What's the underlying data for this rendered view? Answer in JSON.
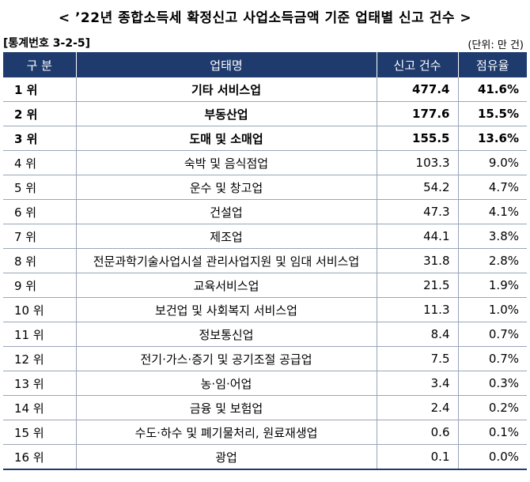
{
  "title": "< ’22년 종합소득세 확정신고 사업소득금액 기준 업태별 신고 건수 >",
  "table_code": "[통계번호 3-2-5]",
  "unit": "(단위: 만 건)",
  "headers": {
    "rank": "구 분",
    "name": "업태명",
    "count": "신고 건수",
    "share": "점유율"
  },
  "rows": [
    {
      "rank": "1 위",
      "name": "기타 서비스업",
      "count": "477.4",
      "share": "41.6%"
    },
    {
      "rank": "2 위",
      "name": "부동산업",
      "count": "177.6",
      "share": "15.5%"
    },
    {
      "rank": "3 위",
      "name": "도매 및 소매업",
      "count": "155.5",
      "share": "13.6%"
    },
    {
      "rank": "4 위",
      "name": "숙박 및 음식점업",
      "count": "103.3",
      "share": "9.0%"
    },
    {
      "rank": "5 위",
      "name": "운수 및 창고업",
      "count": "54.2",
      "share": "4.7%"
    },
    {
      "rank": "6 위",
      "name": "건설업",
      "count": "47.3",
      "share": "4.1%"
    },
    {
      "rank": "7 위",
      "name": "제조업",
      "count": "44.1",
      "share": "3.8%"
    },
    {
      "rank": "8 위",
      "name": "전문과학기술사업시설 관리사업지원 및 임대 서비스업",
      "count": "31.8",
      "share": "2.8%"
    },
    {
      "rank": "9 위",
      "name": "교육서비스업",
      "count": "21.5",
      "share": "1.9%"
    },
    {
      "rank": "10 위",
      "name": "보건업 및 사회복지 서비스업",
      "count": "11.3",
      "share": "1.0%"
    },
    {
      "rank": "11 위",
      "name": "정보통신업",
      "count": "8.4",
      "share": "0.7%"
    },
    {
      "rank": "12 위",
      "name": "전기·가스·증기 및 공기조절 공급업",
      "count": "7.5",
      "share": "0.7%"
    },
    {
      "rank": "13 위",
      "name": "농·임·어업",
      "count": "3.4",
      "share": "0.3%"
    },
    {
      "rank": "14 위",
      "name": "금융 및 보험업",
      "count": "2.4",
      "share": "0.2%"
    },
    {
      "rank": "15 위",
      "name": "수도·하수 및 폐기물처리, 원료재생업",
      "count": "0.6",
      "share": "0.1%"
    },
    {
      "rank": "16 위",
      "name": "광업",
      "count": "0.1",
      "share": "0.0%"
    }
  ]
}
